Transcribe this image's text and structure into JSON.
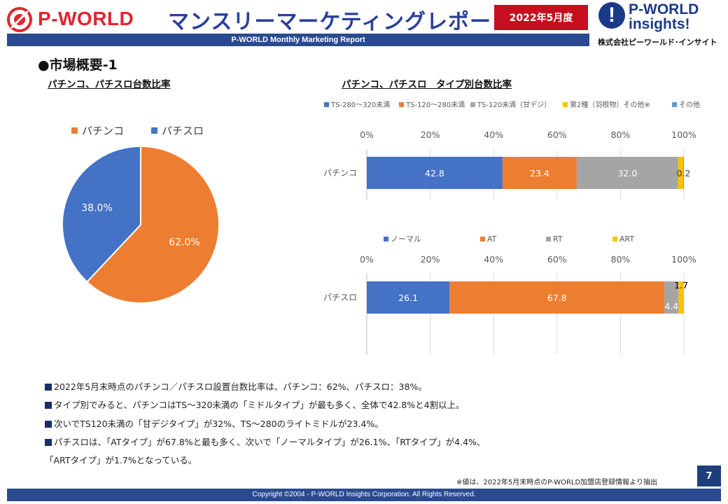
{
  "header": {
    "brand_left": "P-WORLD",
    "title": "マンスリーマーケティングレポート",
    "date_badge": "2022年5月度",
    "brand_right_line1": "P-WORLD",
    "brand_right_line2": "insights!",
    "brand_right_company": "株式会社ピーワールド･インサイト",
    "subtitle": "P-WORLD Monthly Marketing Report"
  },
  "section_title": "●市場概要-1",
  "colors": {
    "blue": "#4472c4",
    "orange": "#ed7d31",
    "gray": "#a5a5a5",
    "yellow": "#ffc000",
    "light_blue": "#5b9bd5",
    "navy": "#2a4a8f",
    "red": "#c50f1e"
  },
  "chart_data": [
    {
      "type": "pie",
      "title": "パチンコ、パチスロ台数比率",
      "categories": [
        "パチンコ",
        "パチスロ"
      ],
      "values": [
        62.0,
        38.0
      ],
      "data_labels": [
        "62.0%",
        "38.0%"
      ],
      "legend_position": "top"
    },
    {
      "type": "bar",
      "orientation": "horizontal",
      "stacked": true,
      "title": "パチンコ、パチスロ　タイプ別台数比率",
      "panels": [
        {
          "category": "パチンコ",
          "legend": [
            "TS-280～320未満",
            "TS-120～280未満",
            "TS-120未満（甘デジ）",
            "第2種（羽根物）その他※",
            "その他"
          ],
          "values": [
            42.8,
            23.4,
            32.0,
            1.6,
            0.2
          ],
          "data_labels": [
            "42.8",
            "23.4",
            "32.0",
            "",
            "0.2"
          ],
          "xlim": [
            0,
            100
          ],
          "xticks": [
            "0%",
            "20%",
            "40%",
            "60%",
            "80%",
            "100%"
          ]
        },
        {
          "category": "パチスロ",
          "legend": [
            "ノーマル",
            "AT",
            "RT",
            "ART"
          ],
          "values": [
            26.1,
            67.8,
            4.4,
            1.7
          ],
          "data_labels": [
            "26.1",
            "67.8",
            "4.4",
            "1.7"
          ],
          "xlim": [
            0,
            100
          ],
          "xticks": [
            "0%",
            "20%",
            "40%",
            "60%",
            "80%",
            "100%"
          ]
        }
      ]
    }
  ],
  "bullets": [
    "2022年5月末時点のパチンコ／パチスロ設置台数比率は、パチンコ：62%、パチスロ：38%。",
    "タイプ別でみると、パチンコはTS～320未満の「ミドルタイプ」が最も多く、全体で42.8%と4割以上。",
    "次いでTS120未満の「甘デジタイプ」が32%、TS～280のライトミドルが23.4%。",
    "パチスロは、「ATタイプ」が67.8%と最も多く、次いで「ノーマルタイプ」が26.1%、「RTタイプ」が4.4%、",
    "「ARTタイプ」が1.7%となっている。"
  ],
  "note": "※値は、2022年5月末時点のP-WORLD加盟店登録情報より抽出",
  "page_number": "7",
  "footer": "Copyright ©2004 -  P-WORLD Insights Corporation. All Rights Reserved."
}
